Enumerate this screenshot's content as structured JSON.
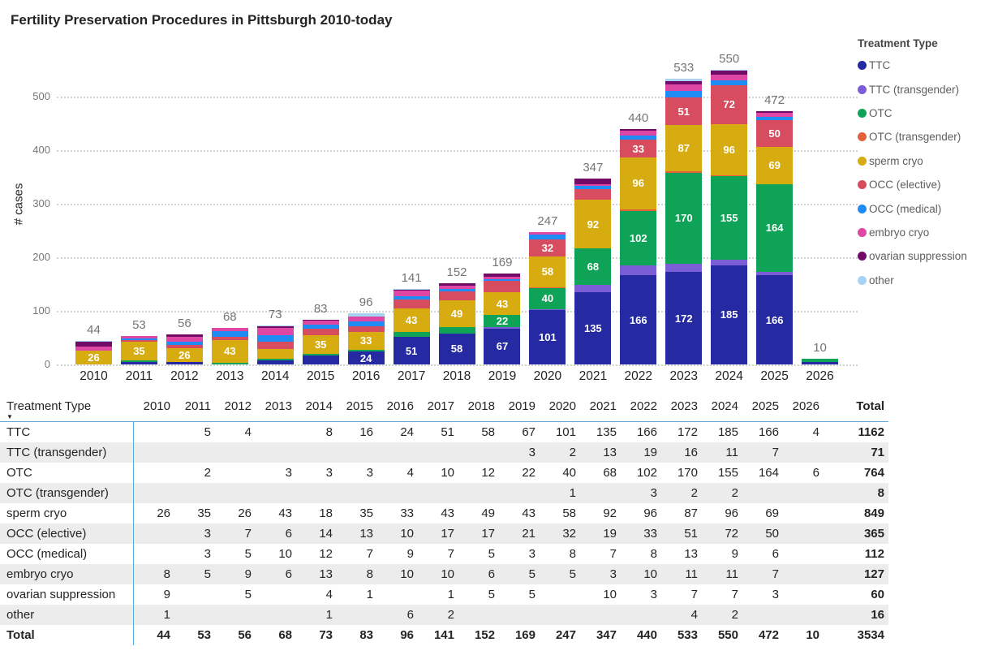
{
  "table": {
    "row_dimension_label": "Treatment Type",
    "total_label": "Total",
    "sort_indicator": "▼"
  },
  "chart_data": {
    "type": "bar",
    "stacked": true,
    "title": "Fertility Preservation Procedures in Pittsburgh 2010-today",
    "xlabel": "",
    "ylabel": "# cases",
    "ylim": [
      0,
      560
    ],
    "yticks": [
      0,
      100,
      200,
      300,
      400,
      500
    ],
    "grid": "horizontal-dotted",
    "legend_position": "right",
    "legend_title": "Treatment Type",
    "bar_label_min": 22,
    "categories": [
      "2010",
      "2011",
      "2012",
      "2013",
      "2014",
      "2015",
      "2016",
      "2017",
      "2018",
      "2019",
      "2020",
      "2021",
      "2022",
      "2023",
      "2024",
      "2025",
      "2026"
    ],
    "series": [
      {
        "name": "TTC",
        "color": "#2529a2",
        "values": [
          0,
          5,
          4,
          0,
          8,
          16,
          24,
          51,
          58,
          67,
          101,
          135,
          166,
          172,
          185,
          166,
          4
        ],
        "total": 1162
      },
      {
        "name": "TTC (transgender)",
        "color": "#7b5dd6",
        "values": [
          0,
          0,
          0,
          0,
          0,
          0,
          0,
          0,
          0,
          3,
          2,
          13,
          19,
          16,
          11,
          7,
          0
        ],
        "total": 71
      },
      {
        "name": "OTC",
        "color": "#0fa357",
        "values": [
          0,
          2,
          0,
          3,
          3,
          3,
          4,
          10,
          12,
          22,
          40,
          68,
          102,
          170,
          155,
          164,
          6
        ],
        "total": 764
      },
      {
        "name": "OTC (transgender)",
        "color": "#e4603b",
        "values": [
          0,
          0,
          0,
          0,
          0,
          0,
          0,
          0,
          0,
          0,
          1,
          0,
          3,
          2,
          2,
          0,
          0
        ],
        "total": 8
      },
      {
        "name": "sperm cryo",
        "color": "#d7ac11",
        "values": [
          26,
          35,
          26,
          43,
          18,
          35,
          33,
          43,
          49,
          43,
          58,
          92,
          96,
          87,
          96,
          69,
          0
        ],
        "total": 849
      },
      {
        "name": "OCC (elective)",
        "color": "#d74d5f",
        "values": [
          0,
          3,
          7,
          6,
          14,
          13,
          10,
          17,
          17,
          21,
          32,
          19,
          33,
          51,
          72,
          50,
          0
        ],
        "total": 365
      },
      {
        "name": "OCC (medical)",
        "color": "#1f8cf5",
        "values": [
          0,
          3,
          5,
          10,
          12,
          7,
          9,
          7,
          5,
          3,
          8,
          7,
          8,
          13,
          9,
          6,
          0
        ],
        "total": 112
      },
      {
        "name": "embryo cryo",
        "color": "#de47a3",
        "values": [
          8,
          5,
          9,
          6,
          13,
          8,
          10,
          10,
          6,
          5,
          5,
          3,
          10,
          11,
          11,
          7,
          0
        ],
        "total": 127
      },
      {
        "name": "ovarian suppression",
        "color": "#720b68",
        "values": [
          9,
          0,
          5,
          0,
          4,
          1,
          0,
          1,
          5,
          5,
          0,
          10,
          3,
          7,
          7,
          3,
          0
        ],
        "total": 60
      },
      {
        "name": "other",
        "color": "#a7d2f3",
        "values": [
          1,
          0,
          0,
          0,
          1,
          0,
          6,
          2,
          0,
          0,
          0,
          0,
          0,
          4,
          2,
          0,
          0
        ],
        "total": 16
      }
    ],
    "column_totals": [
      44,
      53,
      56,
      68,
      73,
      83,
      96,
      141,
      152,
      169,
      247,
      347,
      440,
      533,
      550,
      472,
      10
    ],
    "grand_total": 3534
  }
}
